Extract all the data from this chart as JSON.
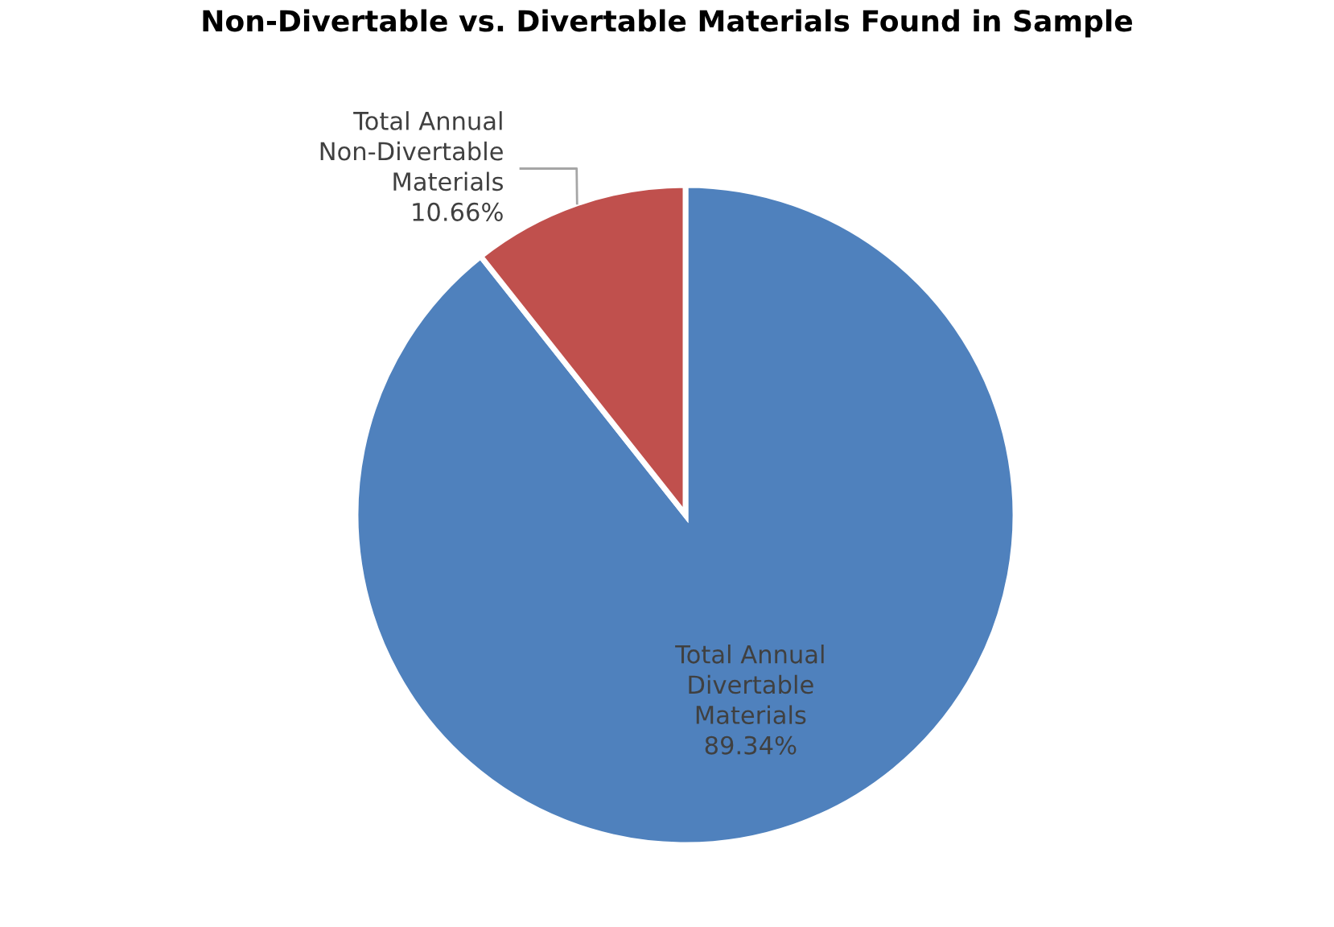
{
  "chart_data": {
    "type": "pie",
    "title": "Non-Divertable vs. Divertable Materials Found in Sample",
    "categories": [
      "Total Annual Divertable Materials",
      "Total Annual Non-Divertable Materials"
    ],
    "values": [
      89.34,
      10.66
    ],
    "colors": [
      "#4f81bd",
      "#c0504d"
    ],
    "value_labels": [
      "89.34%",
      "10.66%"
    ],
    "legend": false
  }
}
